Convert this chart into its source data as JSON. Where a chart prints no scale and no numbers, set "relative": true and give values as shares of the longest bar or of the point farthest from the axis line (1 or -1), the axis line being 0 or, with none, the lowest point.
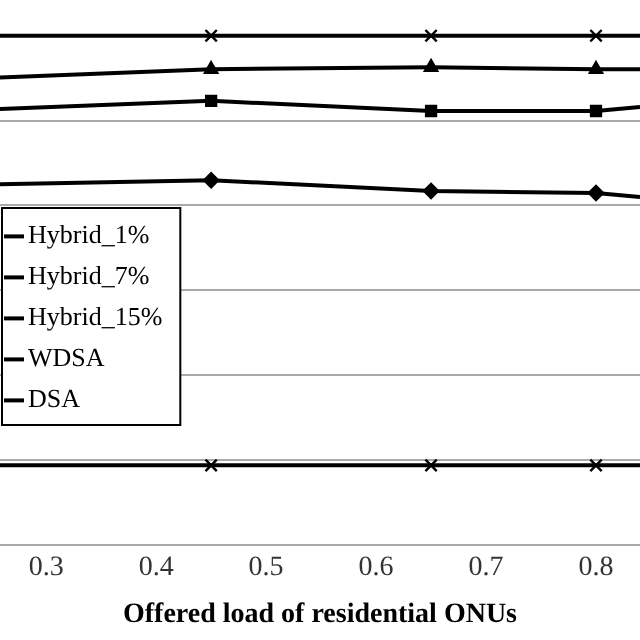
{
  "chart_data": {
    "type": "line",
    "xlabel": "Offered load of residential ONUs",
    "relative": true,
    "xlim": [
      0.258,
      0.84
    ],
    "xticks": [
      0.3,
      0.4,
      0.5,
      0.6,
      0.7,
      0.8
    ],
    "grid": "y",
    "legend": "left",
    "line_style": "solid",
    "series": [
      {
        "name": "Hybrid_1%",
        "color": "#000000",
        "marker": "cross",
        "x": [
          0.258,
          0.45,
          0.65,
          0.8,
          0.84
        ],
        "values": [
          1,
          1,
          1,
          1,
          1
        ]
      },
      {
        "name": "Hybrid_7%",
        "color": "#000000",
        "marker": "triangle",
        "x": [
          0.258,
          0.45,
          0.65,
          0.8,
          0.84
        ],
        "values": [
          0.918,
          0.934,
          0.938,
          0.934,
          0.934
        ]
      },
      {
        "name": "Hybrid_15%",
        "color": "#000000",
        "marker": "square",
        "x": [
          0.258,
          0.45,
          0.65,
          0.8,
          0.84
        ],
        "values": [
          0.856,
          0.872,
          0.852,
          0.852,
          0.86
        ]
      },
      {
        "name": "WDSA",
        "color": "#000000",
        "marker": "diamond",
        "x": [
          0.258,
          0.45,
          0.65,
          0.8,
          0.84
        ],
        "values": [
          0.708,
          0.716,
          0.695,
          0.691,
          0.683
        ]
      },
      {
        "name": "DSA",
        "color": "#000000",
        "marker": "cross",
        "x": [
          0.258,
          0.45,
          0.65,
          0.8,
          0.84
        ],
        "values": [
          0.156,
          0.156,
          0.156,
          0.156,
          0.156
        ]
      }
    ]
  }
}
